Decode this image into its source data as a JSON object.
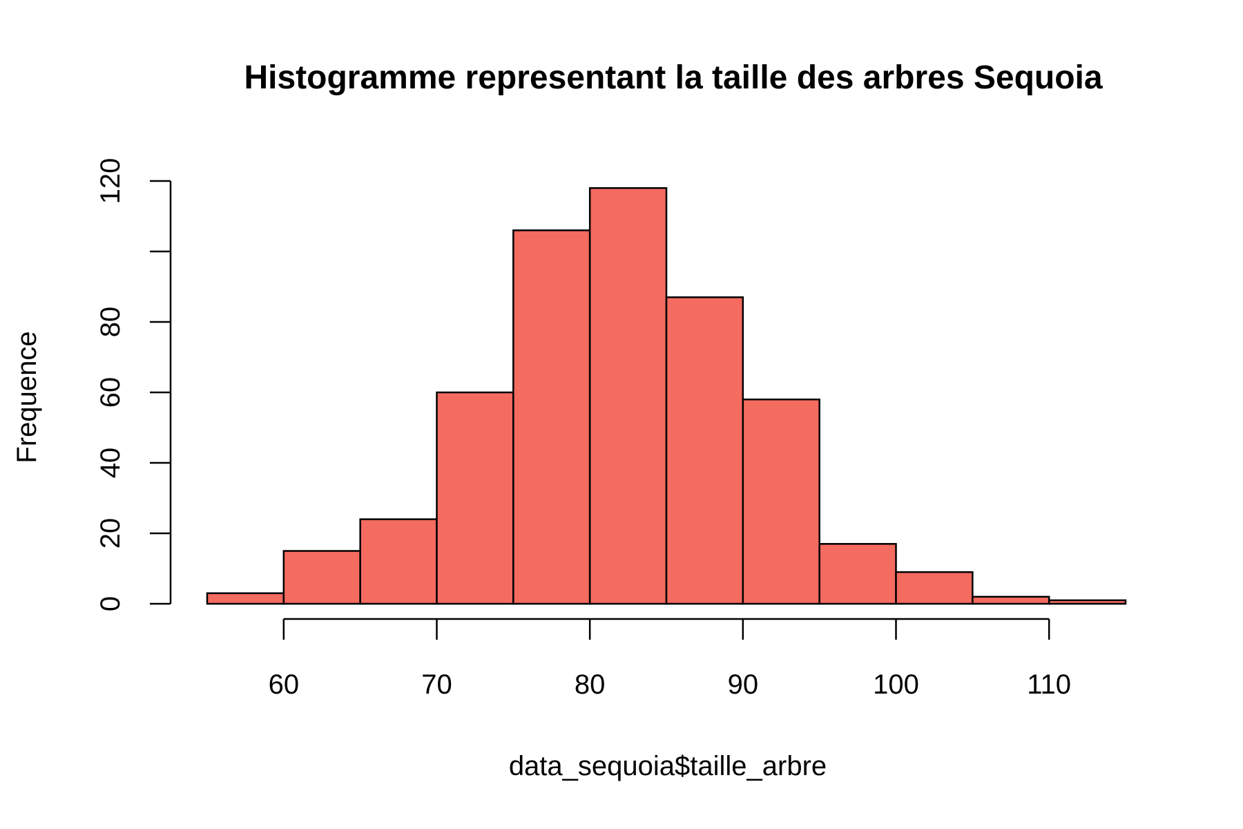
{
  "chart_data": {
    "type": "bar",
    "title": "Histogramme representant la taille des arbres Sequoia",
    "xlabel": "data_sequoia$taille_arbre",
    "ylabel": "Frequence",
    "bins": [
      {
        "from": 55,
        "to": 60,
        "count": 3
      },
      {
        "from": 60,
        "to": 65,
        "count": 15
      },
      {
        "from": 65,
        "to": 70,
        "count": 24
      },
      {
        "from": 70,
        "to": 75,
        "count": 60
      },
      {
        "from": 75,
        "to": 80,
        "count": 106
      },
      {
        "from": 80,
        "to": 85,
        "count": 118
      },
      {
        "from": 85,
        "to": 90,
        "count": 87
      },
      {
        "from": 90,
        "to": 95,
        "count": 58
      },
      {
        "from": 95,
        "to": 100,
        "count": 17
      },
      {
        "from": 100,
        "to": 105,
        "count": 9
      },
      {
        "from": 105,
        "to": 110,
        "count": 2
      },
      {
        "from": 110,
        "to": 115,
        "count": 1
      }
    ],
    "xlim": [
      55,
      115
    ],
    "ylim": [
      0,
      120
    ],
    "xticks": [
      60,
      70,
      80,
      90,
      100,
      110
    ],
    "xtick_labels": [
      "60",
      "70",
      "80",
      "90",
      "100",
      "110"
    ],
    "yticks": [
      0,
      20,
      40,
      60,
      80,
      100,
      120
    ],
    "ytick_labels": [
      "0",
      "20",
      "40",
      "60",
      "80",
      "",
      "120"
    ],
    "grid": false,
    "bar_color": "#f46b60",
    "edge_color": "#000000"
  }
}
